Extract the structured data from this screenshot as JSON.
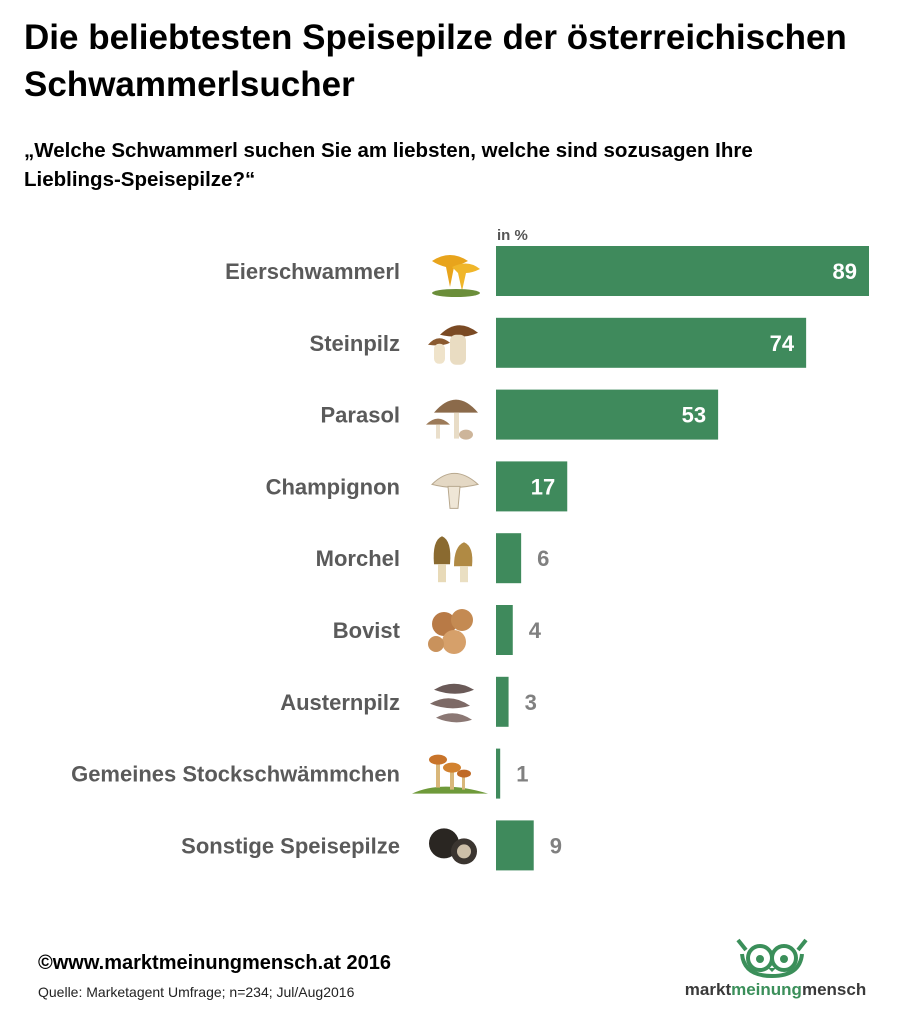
{
  "header": {
    "title": "Die beliebtesten Speisepilze der österreichischen Schwammerlsucher",
    "subtitle": "„Welche Schwammerl suchen Sie am liebsten, welche sind sozusagen Ihre Lieblings-Speisepilze?“"
  },
  "chart_data": {
    "type": "bar",
    "orientation": "horizontal",
    "title": "Die beliebtesten Speisepilze der österreichischen Schwammerlsucher",
    "unit_label": "in %",
    "categories": [
      "Eierschwammerl",
      "Steinpilz",
      "Parasol",
      "Champignon",
      "Morchel",
      "Bovist",
      "Austernpilz",
      "Gemeines Stockschwämmchen",
      "Sonstige Speisepilze"
    ],
    "values": [
      89,
      74,
      53,
      17,
      6,
      4,
      3,
      1,
      9
    ],
    "xlim": [
      0,
      89
    ],
    "bar_color": "#3f8a5c",
    "inside_label_color": "#ffffff",
    "outside_label_color": "#808080",
    "category_label_color": "#5a5a5a"
  },
  "footer": {
    "copyright": "©www.marktmeinungmensch.at 2016",
    "source": "Quelle: Marketagent Umfrage; n=234; Jul/Aug2016"
  },
  "logo": {
    "word1": "markt",
    "word2": "meinung",
    "word3": "mensch",
    "color": "#3b8f5a"
  },
  "icons": [
    "chanterelle-icon",
    "porcini-icon",
    "parasol-icon",
    "champignon-icon",
    "morel-icon",
    "puffball-icon",
    "oyster-mushroom-icon",
    "stockschwaemmchen-icon",
    "truffle-icon"
  ]
}
